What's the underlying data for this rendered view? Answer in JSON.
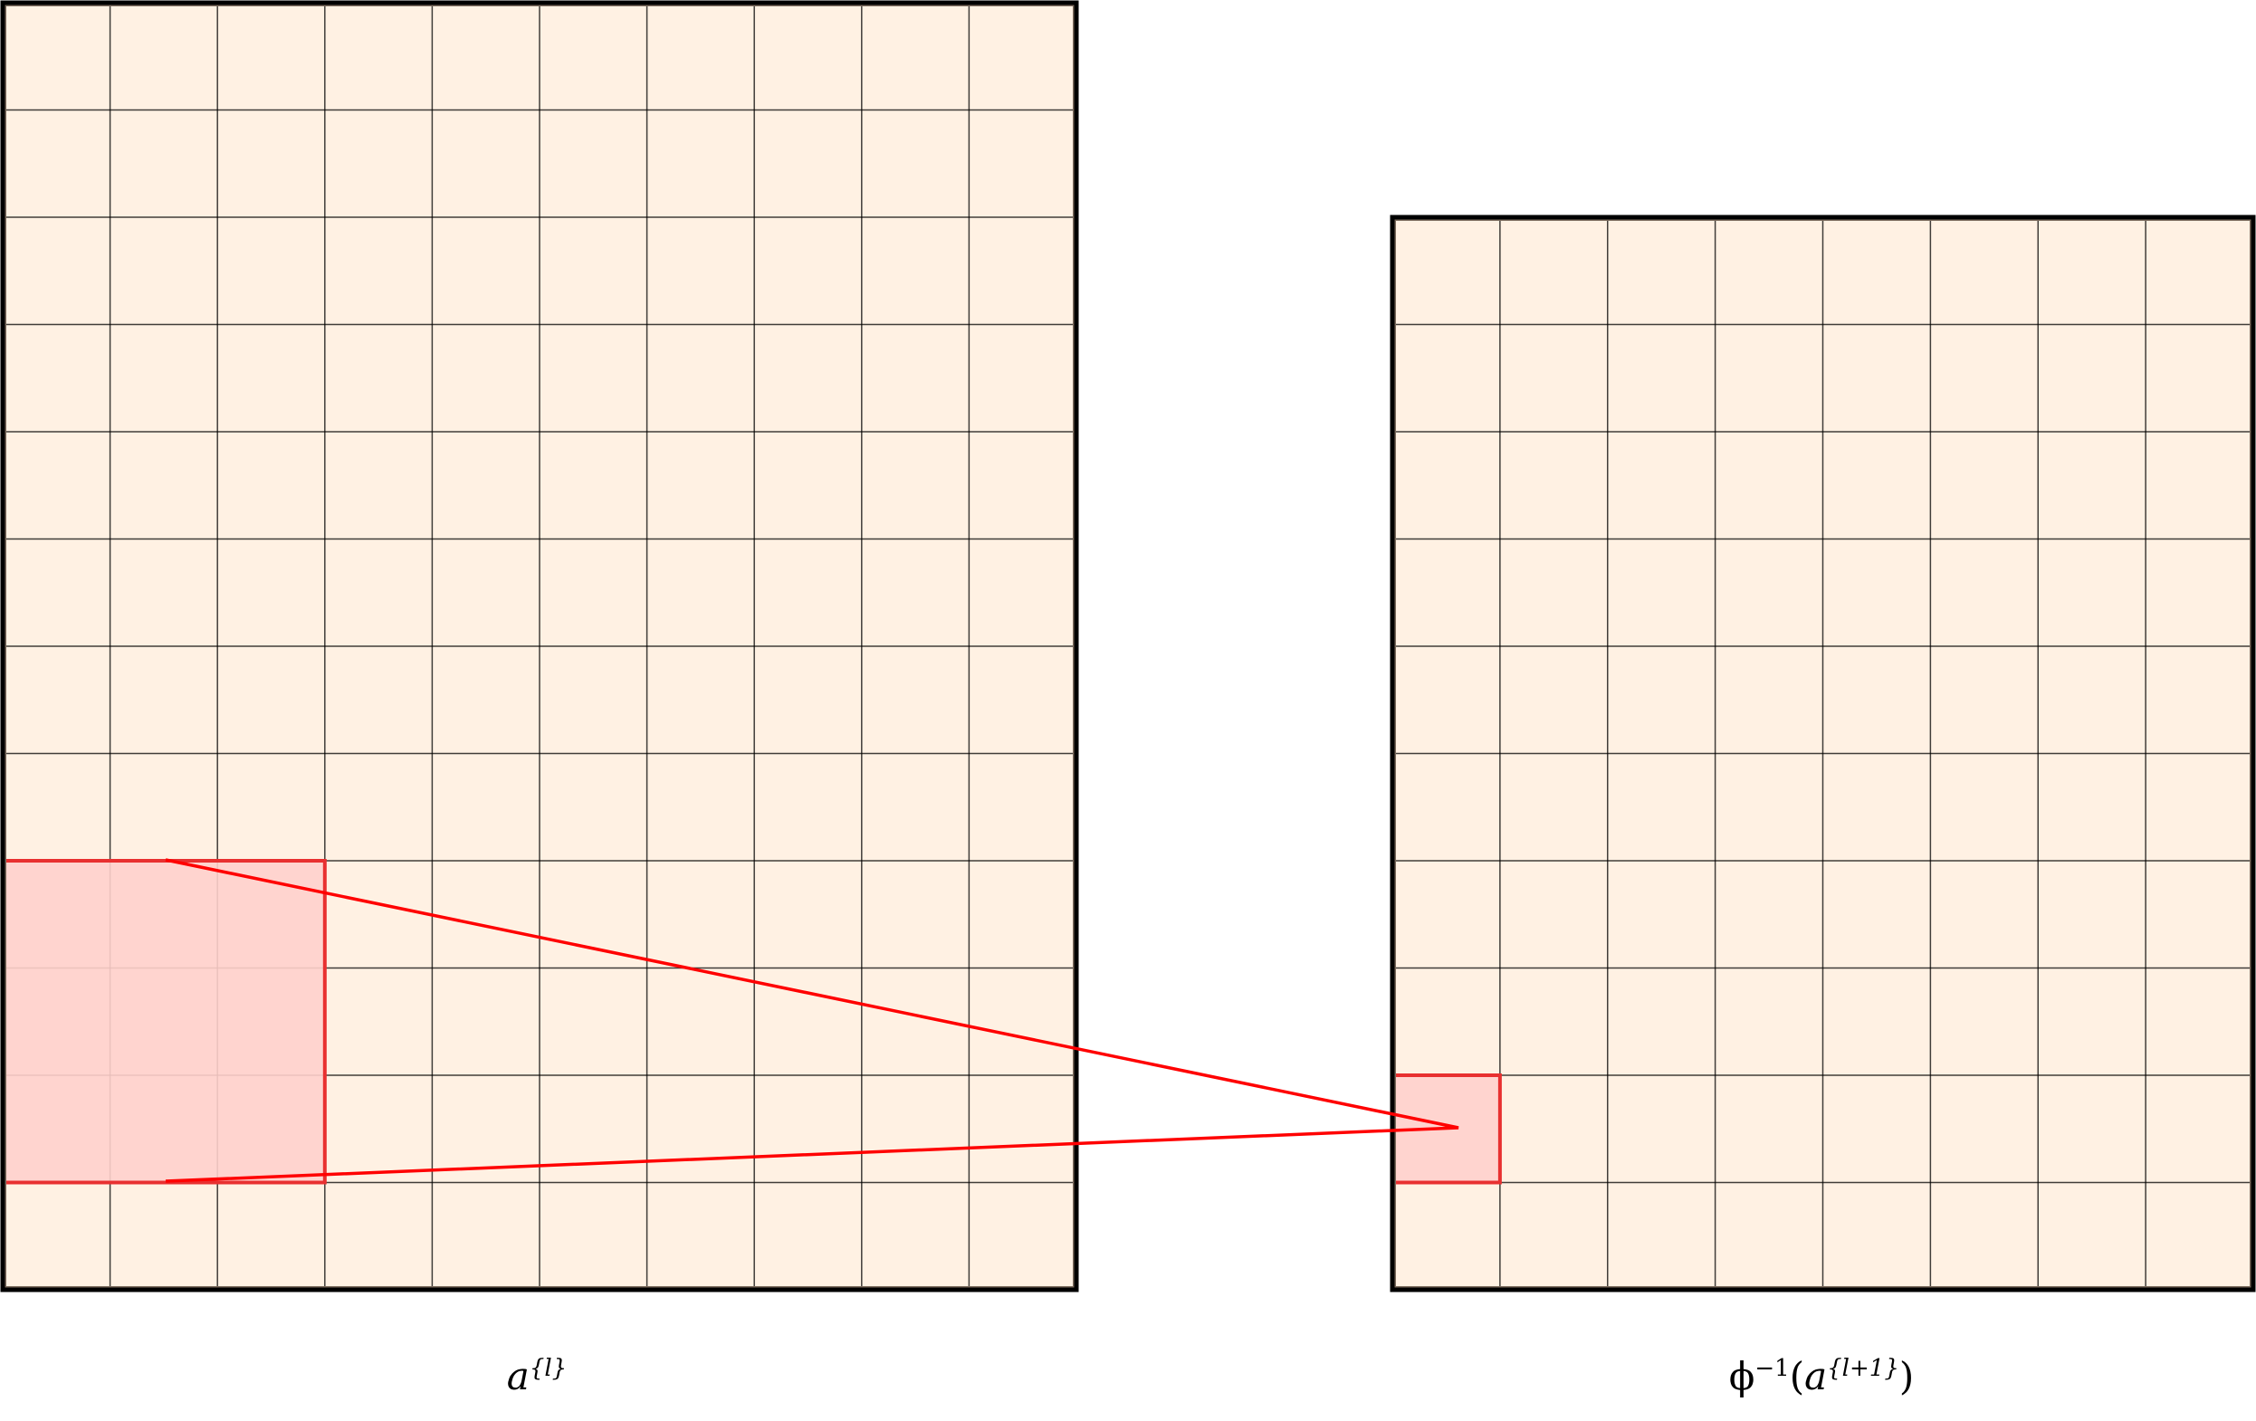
{
  "colors": {
    "cell_fill": "#fff1e3",
    "grid_line": "#000000",
    "frame": "#000000",
    "highlight_fill": "#ffd0cc",
    "highlight_stroke": "#e83030",
    "connector": "#ff0000"
  },
  "left_grid": {
    "cols": 10,
    "rows": 12,
    "highlight": {
      "col": 0,
      "row": 8,
      "span": 3
    }
  },
  "right_grid": {
    "cols": 8,
    "rows": 10,
    "highlight": {
      "col": 0,
      "row": 8,
      "span": 1
    }
  },
  "labels": {
    "left_base": "a",
    "left_sup": "{l}",
    "right_func": "ϕ",
    "right_func_sup": "−1",
    "right_open": "(",
    "right_base": "a",
    "right_sup": "{l+1}",
    "right_close": ")"
  }
}
